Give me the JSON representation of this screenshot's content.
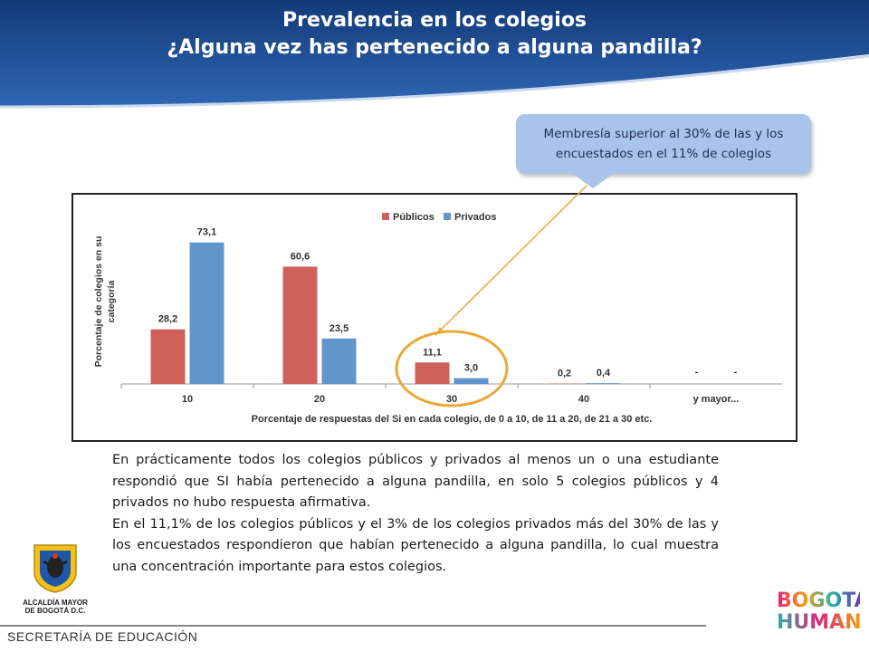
{
  "header": {
    "title_line1": "Prevalencia en los colegios",
    "title_line2": "¿Alguna vez has pertenecido a alguna pandilla?",
    "colors": {
      "blue_dark": "#123a78",
      "blue_mid": "#2a5ea8"
    }
  },
  "callout": {
    "text_line1": "Membresía superior al 30% de las y los",
    "text_line2": "encuestados en el 11% de colegios",
    "color": "#a9c4eb"
  },
  "chart_data": {
    "type": "bar",
    "categories": [
      "10",
      "20",
      "30",
      "40",
      "y mayor..."
    ],
    "series": [
      {
        "name": "Públicos",
        "values": [
          28.2,
          60.6,
          11.1,
          0.2,
          null
        ],
        "labels": [
          "28,2",
          "60,6",
          "11,1",
          "0,2",
          "-"
        ],
        "color": "#d0605a"
      },
      {
        "name": "Privados",
        "values": [
          73.1,
          23.5,
          3.0,
          0.4,
          null
        ],
        "labels": [
          "73,1",
          "23,5",
          "3,0",
          "0,4",
          "-"
        ],
        "color": "#6196cc"
      }
    ],
    "title": "",
    "xlabel": "Porcentaje de respuestas del Si en cada colegio, de 0 a 10, de 11 a 20, de 21 a 30 etc.",
    "ylabel_line1": "Porcentaje de colegios en su",
    "ylabel_line2": "categoría",
    "ylim": [
      0,
      80
    ],
    "legend": "top-center",
    "grid": false,
    "highlight_category": "30",
    "highlight_color": "#e8a93a"
  },
  "body": {
    "p1": "En prácticamente todos los colegios públicos y privados al menos un o una estudiante respondió que SI había pertenecido a alguna pandilla, en solo 5 colegios públicos y 4 privados no hubo respuesta afirmativa.",
    "p2": "En el 11,1% de los colegios públicos y el 3% de los colegios privados más del 30% de las y los encuestados respondieron que habían pertenecido a alguna pandilla, lo cual muestra una concentración importante para estos colegios."
  },
  "logo_left": {
    "line1": "ALCALDÍA MAYOR",
    "line2": "DE BOGOTÁ D.C."
  },
  "footer": {
    "text": "SECRETARÍA DE EDUCACIÓN"
  },
  "brand": {
    "line1": "BOGOTÁ",
    "line2": "HUMANA"
  }
}
